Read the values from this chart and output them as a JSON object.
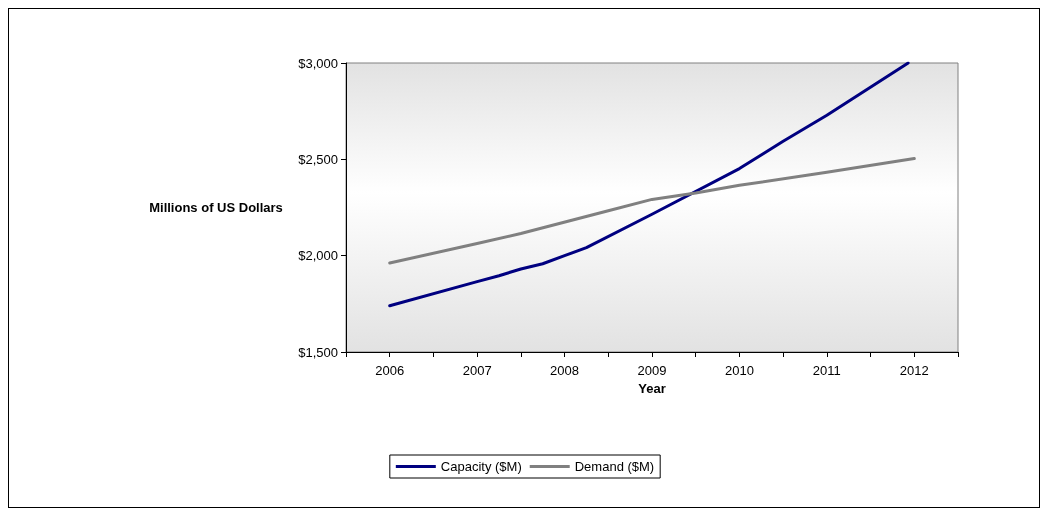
{
  "chart_data": {
    "type": "line",
    "xlabel": "Year",
    "ylabel": "Millions of US Dollars",
    "xlim": [
      2005.5,
      2012.5
    ],
    "xticks": [
      {
        "value": 2005.5,
        "label": null
      },
      2006,
      {
        "value": 2006.5,
        "label": null
      },
      2007,
      {
        "value": 2007.5,
        "label": null
      },
      2008,
      {
        "value": 2008.5,
        "label": null
      },
      2009,
      {
        "value": 2009.5,
        "label": null
      },
      2010,
      {
        "value": 2010.5,
        "label": null
      },
      2011,
      {
        "value": 2011.5,
        "label": null
      },
      2012,
      {
        "value": 2012.5,
        "label": null
      }
    ],
    "ylim": [
      1500,
      3000
    ],
    "yticks": [
      {
        "value": 1500,
        "label": "$1,500"
      },
      {
        "value": 2000,
        "label": "$2,000"
      },
      {
        "value": 2500,
        "label": "$2,500"
      },
      {
        "value": 3000,
        "label": "$3,000"
      }
    ],
    "series": [
      {
        "name": "Capacity ($M)",
        "color": "#000080",
        "x": [
          2006,
          2007,
          2007.25,
          2007.5,
          2007.75,
          2008,
          2008.25,
          2009,
          2010,
          2010.5,
          2011,
          2011.93
        ],
        "values": [
          1740,
          1865,
          1896,
          1931,
          1958,
          2000,
          2042,
          2215,
          2452,
          2594,
          2729,
          3000
        ]
      },
      {
        "name": "Demand ($M)",
        "color": "#808080",
        "x": [
          2006,
          2007,
          2007.5,
          2008.5,
          2009,
          2009.5,
          2010,
          2011,
          2012
        ],
        "values": [
          1962,
          2063,
          2115,
          2233,
          2292,
          2325,
          2365,
          2433,
          2504
        ]
      }
    ],
    "grid": false,
    "legend": "bottom",
    "marker": "none",
    "line_style": "solid"
  }
}
